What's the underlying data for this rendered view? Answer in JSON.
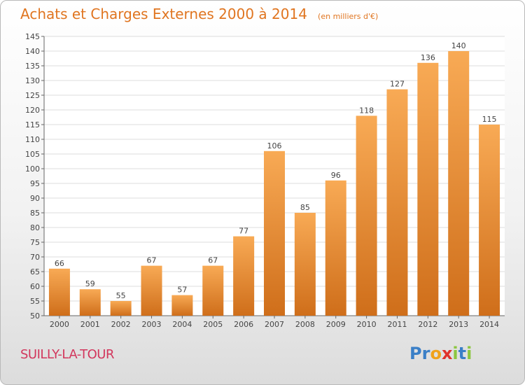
{
  "title": "Achats et Charges Externes 2000 à 2014",
  "unit_note": "(en milliers d'€)",
  "commune": "SUILLY-LA-TOUR",
  "logo": {
    "text": "Proxiti",
    "colors": [
      "#3a7fc7",
      "#3a7fc7",
      "#f0a21b",
      "#e0312b",
      "#8cc63f",
      "#3a7fc7",
      "#8cc63f"
    ]
  },
  "colors": {
    "bar_light": "#f8aa55",
    "bar_dark": "#cf6e1a",
    "title": "#e07520",
    "commune": "#d2365c"
  },
  "chart_data": {
    "type": "bar",
    "categories": [
      "2000",
      "2001",
      "2002",
      "2003",
      "2004",
      "2005",
      "2006",
      "2007",
      "2008",
      "2009",
      "2010",
      "2011",
      "2012",
      "2013",
      "2014"
    ],
    "values": [
      66,
      59,
      55,
      67,
      57,
      67,
      77,
      106,
      85,
      96,
      118,
      127,
      136,
      140,
      115
    ],
    "ylim": [
      50,
      145
    ],
    "yticks": [
      50,
      55,
      60,
      65,
      70,
      75,
      80,
      85,
      90,
      95,
      100,
      105,
      110,
      115,
      120,
      125,
      130,
      135,
      140,
      145
    ],
    "grid": true,
    "data_labels": true
  }
}
